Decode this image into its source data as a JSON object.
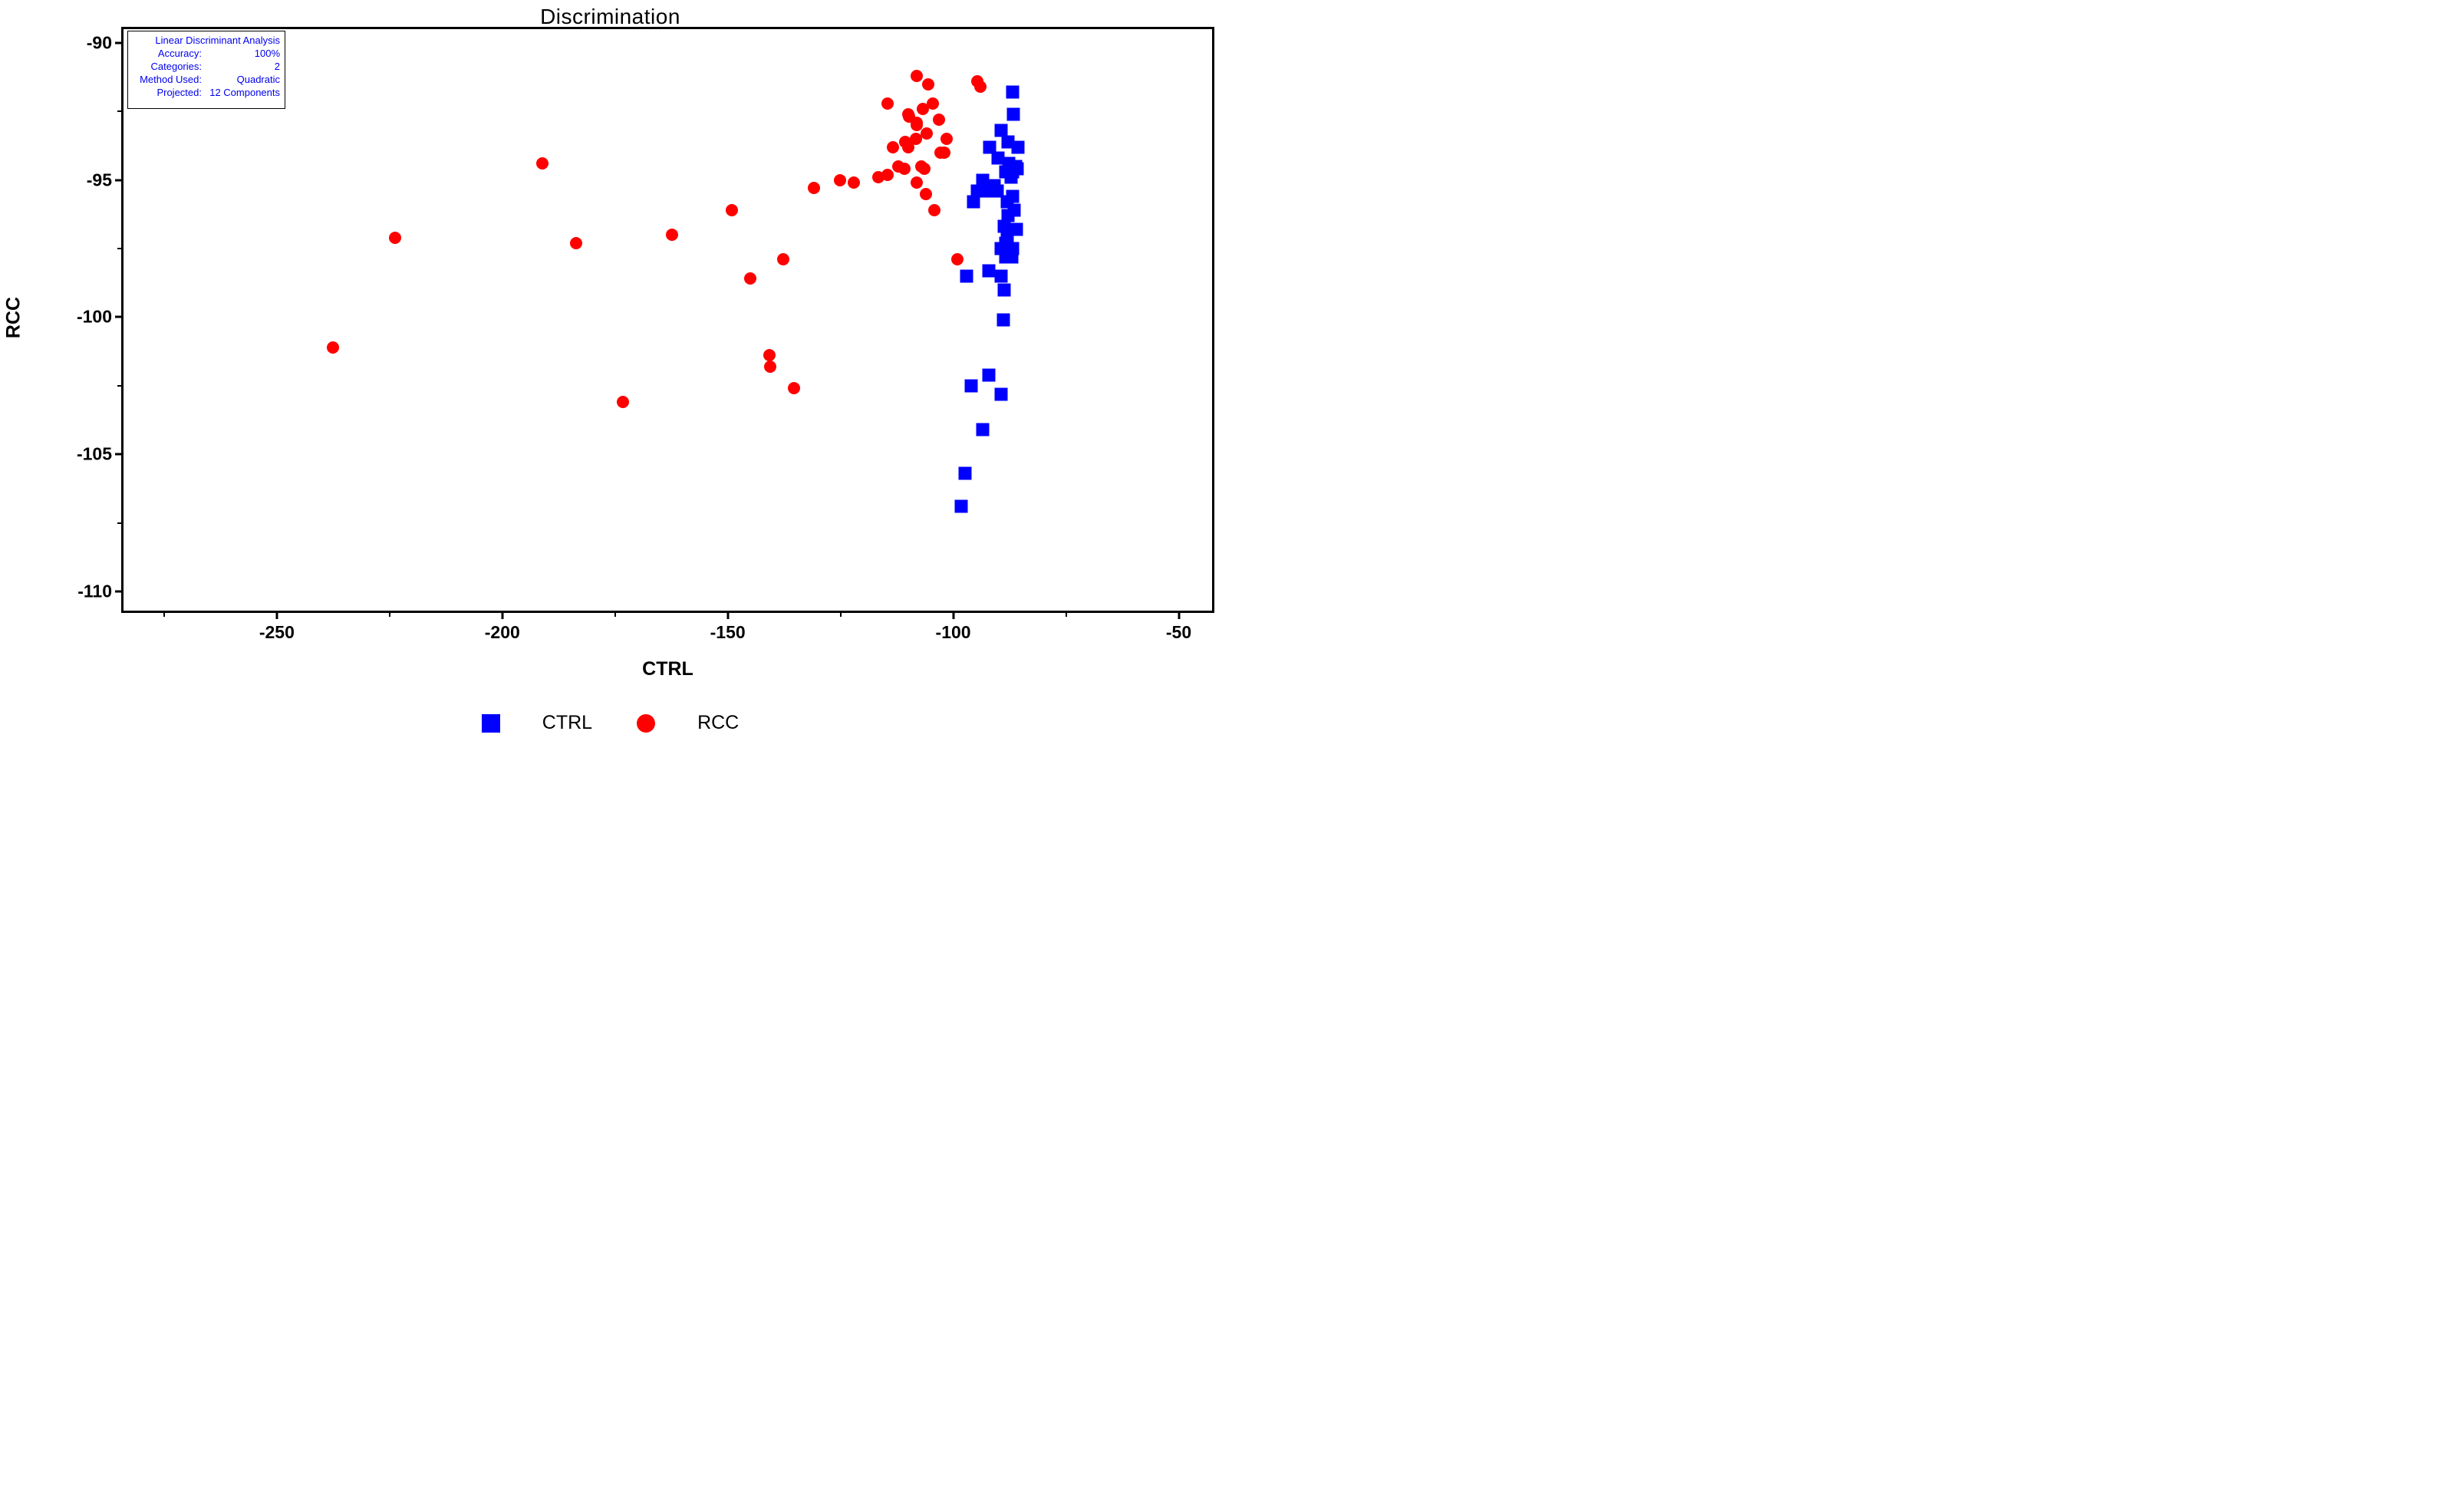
{
  "title": "Discrimination",
  "info_box": {
    "title": "Linear Discriminant Analysis",
    "rows": [
      {
        "label": "Accuracy:",
        "value": "100%"
      },
      {
        "label": "Categories:",
        "value": "2"
      },
      {
        "label": "Method Used:",
        "value": "Quadratic"
      },
      {
        "label": "Projected:",
        "value": "12 Components"
      }
    ],
    "text_color": "#0000ee"
  },
  "colors": {
    "ctrl_blue": "#0000ff",
    "rcc_red": "#ff0000",
    "axis_black": "#000000",
    "background": "#ffffff"
  },
  "chart_data": {
    "type": "scatter",
    "title": "Discrimination",
    "xlabel": "CTRL",
    "ylabel": "RCC",
    "xlim": [
      -284,
      -42.6
    ],
    "ylim": [
      -110.7,
      -89.5
    ],
    "x_major_ticks": [
      -250,
      -200,
      -150,
      -100,
      -50
    ],
    "x_minor_ticks": [
      -275,
      -225,
      -175,
      -125,
      -75
    ],
    "y_major_ticks": [
      -90,
      -95,
      -100,
      -105,
      -110
    ],
    "y_minor_ticks": [
      -92.5,
      -97.5,
      -102.5,
      -107.5
    ],
    "grid": false,
    "legend_position": "bottom-center",
    "legend": [
      {
        "name": "CTRL",
        "marker": "square",
        "color": "#0000ff"
      },
      {
        "name": "RCC",
        "marker": "circle",
        "color": "#ff0000"
      }
    ],
    "series": [
      {
        "name": "CTRL",
        "marker": "square",
        "color": "#0000ff",
        "points": [
          [
            -86.9,
            -91.8
          ],
          [
            -86.7,
            -92.6
          ],
          [
            -89.4,
            -93.2
          ],
          [
            -87.8,
            -93.6
          ],
          [
            -85.7,
            -93.8
          ],
          [
            -92.0,
            -93.8
          ],
          [
            -90.0,
            -94.2
          ],
          [
            -87.7,
            -94.4
          ],
          [
            -86.1,
            -94.5
          ],
          [
            -88.4,
            -94.7
          ],
          [
            -86.8,
            -94.7
          ],
          [
            -85.8,
            -94.6
          ],
          [
            -87.2,
            -94.9
          ],
          [
            -93.5,
            -95.0
          ],
          [
            -90.9,
            -95.2
          ],
          [
            -94.7,
            -95.4
          ],
          [
            -93.2,
            -95.4
          ],
          [
            -90.3,
            -95.4
          ],
          [
            -95.5,
            -95.8
          ],
          [
            -86.9,
            -95.6
          ],
          [
            -88.1,
            -95.8
          ],
          [
            -86.5,
            -96.1
          ],
          [
            -87.8,
            -96.3
          ],
          [
            -88.7,
            -96.7
          ],
          [
            -85.9,
            -96.8
          ],
          [
            -88.0,
            -97.1
          ],
          [
            -88.4,
            -97.3
          ],
          [
            -89.4,
            -97.5
          ],
          [
            -86.8,
            -97.5
          ],
          [
            -88.3,
            -97.8
          ],
          [
            -87.0,
            -97.8
          ],
          [
            -92.1,
            -98.3
          ],
          [
            -97.1,
            -98.5
          ],
          [
            -89.4,
            -98.5
          ],
          [
            -88.7,
            -99.0
          ],
          [
            -88.8,
            -100.1
          ],
          [
            -92.1,
            -102.1
          ],
          [
            -96.1,
            -102.5
          ],
          [
            -89.3,
            -102.8
          ],
          [
            -93.5,
            -104.1
          ],
          [
            -97.4,
            -105.7
          ],
          [
            -98.3,
            -106.9
          ]
        ]
      },
      {
        "name": "RCC",
        "marker": "circle",
        "color": "#ff0000",
        "points": [
          [
            -237.6,
            -101.1
          ],
          [
            -223.7,
            -97.1
          ],
          [
            -191.1,
            -94.4
          ],
          [
            -183.6,
            -97.3
          ],
          [
            -173.2,
            -103.1
          ],
          [
            -162.3,
            -97.0
          ],
          [
            -149.1,
            -96.1
          ],
          [
            -145.0,
            -98.6
          ],
          [
            -140.7,
            -101.4
          ],
          [
            -140.6,
            -101.8
          ],
          [
            -137.7,
            -97.9
          ],
          [
            -135.3,
            -102.6
          ],
          [
            -130.9,
            -95.3
          ],
          [
            -125.1,
            -95.0
          ],
          [
            -122.0,
            -95.1
          ],
          [
            -116.6,
            -94.9
          ],
          [
            -114.5,
            -94.8
          ],
          [
            -108.1,
            -91.2
          ],
          [
            -105.6,
            -91.5
          ],
          [
            -94.6,
            -91.4
          ],
          [
            -93.9,
            -91.6
          ],
          [
            -114.5,
            -92.2
          ],
          [
            -106.8,
            -92.4
          ],
          [
            -104.6,
            -92.2
          ],
          [
            -110.0,
            -92.6
          ],
          [
            -109.8,
            -92.7
          ],
          [
            -108.1,
            -92.9
          ],
          [
            -108.1,
            -93.0
          ],
          [
            -103.1,
            -92.8
          ],
          [
            -105.8,
            -93.3
          ],
          [
            -108.3,
            -93.5
          ],
          [
            -110.6,
            -93.6
          ],
          [
            -109.9,
            -93.8
          ],
          [
            -113.3,
            -93.8
          ],
          [
            -101.5,
            -93.5
          ],
          [
            -102.8,
            -94.0
          ],
          [
            -101.9,
            -94.0
          ],
          [
            -112.1,
            -94.5
          ],
          [
            -110.8,
            -94.6
          ],
          [
            -107.0,
            -94.5
          ],
          [
            -106.4,
            -94.6
          ],
          [
            -108.1,
            -95.1
          ],
          [
            -106.1,
            -95.5
          ],
          [
            -104.2,
            -96.1
          ],
          [
            -99.1,
            -97.9
          ]
        ]
      }
    ]
  }
}
